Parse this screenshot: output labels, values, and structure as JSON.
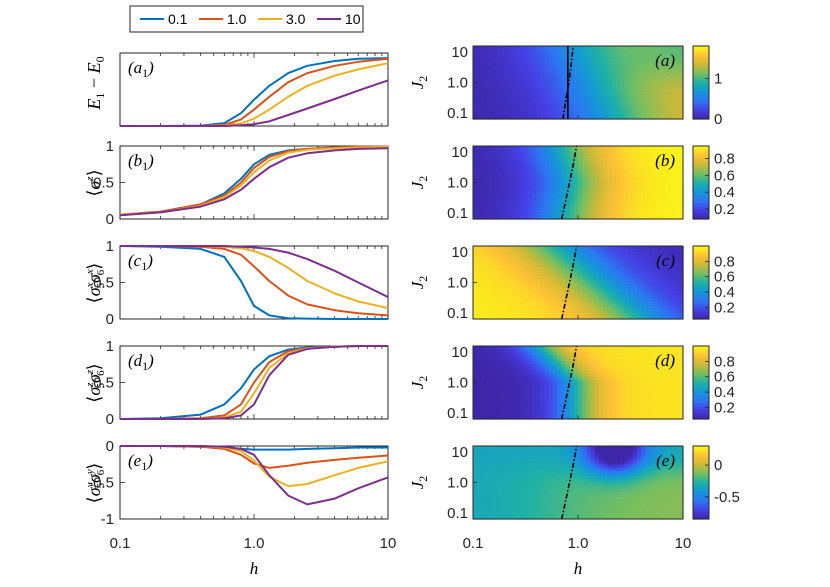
{
  "legend": {
    "entries": [
      {
        "label": "0.1",
        "color": "#0072BD"
      },
      {
        "label": "1.0",
        "color": "#D95319"
      },
      {
        "label": "3.0",
        "color": "#EDB120"
      },
      {
        "label": "10",
        "color": "#7E2F8E"
      }
    ]
  },
  "axes": {
    "xlabel": "h",
    "x_ticks": [
      "0.1",
      "1.0",
      "10"
    ],
    "heat_ylabel": "J",
    "heat_ylabel_sub": "2",
    "heat_y_ticks": [
      "10",
      "1.0",
      "0.1"
    ]
  },
  "chart_data": [
    {
      "type": "line",
      "panel": "(a1)",
      "panel_letter": "a",
      "ylabel": "E1 − E0",
      "xscale": "log",
      "xlim": [
        0.1,
        10
      ],
      "ylim": [
        0,
        2
      ],
      "y_ticks": [],
      "series": [
        {
          "name": "0.1",
          "x": [
            0.1,
            0.2,
            0.4,
            0.6,
            0.8,
            1.0,
            1.3,
            1.8,
            2.5,
            4,
            6,
            10
          ],
          "values": [
            0,
            0,
            0.01,
            0.08,
            0.35,
            0.72,
            1.1,
            1.45,
            1.65,
            1.78,
            1.84,
            1.86
          ]
        },
        {
          "name": "1.0",
          "x": [
            0.1,
            0.2,
            0.4,
            0.6,
            0.8,
            1.0,
            1.3,
            1.8,
            2.5,
            4,
            6,
            10
          ],
          "values": [
            0,
            0,
            0,
            0.03,
            0.18,
            0.45,
            0.8,
            1.2,
            1.45,
            1.65,
            1.76,
            1.84
          ]
        },
        {
          "name": "3.0",
          "x": [
            0.1,
            0.2,
            0.4,
            0.6,
            0.8,
            1.0,
            1.3,
            1.8,
            2.5,
            4,
            6,
            10
          ],
          "values": [
            0,
            0,
            0,
            0.01,
            0.07,
            0.2,
            0.45,
            0.8,
            1.1,
            1.38,
            1.55,
            1.72
          ]
        },
        {
          "name": "10",
          "x": [
            0.1,
            0.2,
            0.4,
            0.6,
            0.8,
            1.0,
            1.3,
            1.8,
            2.5,
            4,
            6,
            10
          ],
          "values": [
            0,
            0,
            0,
            0,
            0.02,
            0.05,
            0.13,
            0.3,
            0.48,
            0.74,
            0.97,
            1.25
          ]
        }
      ]
    },
    {
      "type": "line",
      "panel": "(b1)",
      "panel_letter": "b",
      "ylabel": "⟨σz⟩",
      "xscale": "log",
      "xlim": [
        0.1,
        10
      ],
      "ylim": [
        0,
        1
      ],
      "y_ticks": [
        "0",
        "0.5",
        "1"
      ],
      "series": [
        {
          "name": "0.1",
          "x": [
            0.1,
            0.2,
            0.4,
            0.6,
            0.8,
            1.0,
            1.3,
            1.8,
            2.5,
            4,
            6,
            10
          ],
          "values": [
            0.06,
            0.1,
            0.2,
            0.35,
            0.55,
            0.75,
            0.88,
            0.94,
            0.96,
            0.98,
            0.99,
            0.99
          ]
        },
        {
          "name": "1.0",
          "x": [
            0.1,
            0.2,
            0.4,
            0.6,
            0.8,
            1.0,
            1.3,
            1.8,
            2.5,
            4,
            6,
            10
          ],
          "values": [
            0.06,
            0.1,
            0.2,
            0.32,
            0.5,
            0.7,
            0.85,
            0.93,
            0.96,
            0.98,
            0.99,
            0.99
          ]
        },
        {
          "name": "3.0",
          "x": [
            0.1,
            0.2,
            0.4,
            0.6,
            0.8,
            1.0,
            1.3,
            1.8,
            2.5,
            4,
            6,
            10
          ],
          "values": [
            0.06,
            0.09,
            0.18,
            0.3,
            0.46,
            0.64,
            0.8,
            0.91,
            0.95,
            0.97,
            0.98,
            0.99
          ]
        },
        {
          "name": "10",
          "x": [
            0.1,
            0.2,
            0.4,
            0.6,
            0.8,
            1.0,
            1.3,
            1.8,
            2.5,
            4,
            6,
            10
          ],
          "values": [
            0.05,
            0.09,
            0.17,
            0.27,
            0.4,
            0.55,
            0.71,
            0.84,
            0.9,
            0.94,
            0.96,
            0.97
          ]
        }
      ]
    },
    {
      "type": "line",
      "panel": "(c1)",
      "panel_letter": "c",
      "ylabel": "⟨σ5x σ6x⟩",
      "xscale": "log",
      "xlim": [
        0.1,
        10
      ],
      "ylim": [
        0,
        1
      ],
      "y_ticks": [
        "0",
        "0.5",
        "1"
      ],
      "series": [
        {
          "name": "0.1",
          "x": [
            0.1,
            0.2,
            0.4,
            0.6,
            0.8,
            1.0,
            1.3,
            1.8,
            2.5,
            4,
            6,
            10
          ],
          "values": [
            1.0,
            0.99,
            0.96,
            0.85,
            0.52,
            0.18,
            0.05,
            0.01,
            0.005,
            0,
            0,
            0
          ]
        },
        {
          "name": "1.0",
          "x": [
            0.1,
            0.2,
            0.4,
            0.6,
            0.8,
            1.0,
            1.3,
            1.8,
            2.5,
            4,
            6,
            10
          ],
          "values": [
            1.0,
            1.0,
            0.99,
            0.96,
            0.88,
            0.72,
            0.52,
            0.32,
            0.2,
            0.12,
            0.08,
            0.05
          ]
        },
        {
          "name": "3.0",
          "x": [
            0.1,
            0.2,
            0.4,
            0.6,
            0.8,
            1.0,
            1.3,
            1.8,
            2.5,
            4,
            6,
            10
          ],
          "values": [
            1.0,
            1.0,
            1.0,
            0.99,
            0.97,
            0.93,
            0.85,
            0.7,
            0.52,
            0.35,
            0.24,
            0.15
          ]
        },
        {
          "name": "10",
          "x": [
            0.1,
            0.2,
            0.4,
            0.6,
            0.8,
            1.0,
            1.3,
            1.8,
            2.5,
            4,
            6,
            10
          ],
          "values": [
            1.0,
            1.0,
            1.0,
            1.0,
            0.99,
            0.98,
            0.96,
            0.91,
            0.82,
            0.66,
            0.5,
            0.3
          ]
        }
      ]
    },
    {
      "type": "line",
      "panel": "(d1)",
      "panel_letter": "d",
      "ylabel": "⟨σ5z σ6z⟩",
      "xscale": "log",
      "xlim": [
        0.1,
        10
      ],
      "ylim": [
        0,
        1
      ],
      "y_ticks": [
        "0",
        "0.5",
        "1"
      ],
      "series": [
        {
          "name": "0.1",
          "x": [
            0.1,
            0.2,
            0.4,
            0.6,
            0.8,
            1.0,
            1.3,
            1.8,
            2.5,
            4,
            6,
            10
          ],
          "values": [
            0,
            0.01,
            0.06,
            0.2,
            0.42,
            0.68,
            0.86,
            0.95,
            0.98,
            0.99,
            1,
            1
          ]
        },
        {
          "name": "1.0",
          "x": [
            0.1,
            0.2,
            0.4,
            0.6,
            0.8,
            1.0,
            1.3,
            1.8,
            2.5,
            4,
            6,
            10
          ],
          "values": [
            0,
            0,
            0.01,
            0.05,
            0.2,
            0.5,
            0.78,
            0.93,
            0.97,
            0.99,
            1,
            1
          ]
        },
        {
          "name": "3.0",
          "x": [
            0.1,
            0.2,
            0.4,
            0.6,
            0.8,
            1.0,
            1.3,
            1.8,
            2.5,
            4,
            6,
            10
          ],
          "values": [
            0,
            0,
            0,
            0.02,
            0.1,
            0.35,
            0.7,
            0.9,
            0.97,
            0.99,
            1,
            1
          ]
        },
        {
          "name": "10",
          "x": [
            0.1,
            0.2,
            0.4,
            0.6,
            0.8,
            1.0,
            1.3,
            1.8,
            2.5,
            4,
            6,
            10
          ],
          "values": [
            0,
            0,
            0,
            0.01,
            0.05,
            0.2,
            0.6,
            0.88,
            0.96,
            0.99,
            1,
            1
          ]
        }
      ]
    },
    {
      "type": "line",
      "panel": "(e1)",
      "panel_letter": "e",
      "ylabel": "⟨σ5y σ6y⟩",
      "xscale": "log",
      "xlim": [
        0.1,
        10
      ],
      "ylim": [
        -1,
        0
      ],
      "y_ticks": [
        "0",
        "-0.5",
        "-1"
      ],
      "series": [
        {
          "name": "0.1",
          "x": [
            0.1,
            0.2,
            0.4,
            0.6,
            0.8,
            1.0,
            1.3,
            1.8,
            2.5,
            4,
            6,
            10
          ],
          "values": [
            0,
            0,
            -0.01,
            -0.02,
            -0.04,
            -0.05,
            -0.05,
            -0.05,
            -0.04,
            -0.03,
            -0.02,
            -0.02
          ]
        },
        {
          "name": "1.0",
          "x": [
            0.1,
            0.2,
            0.4,
            0.6,
            0.8,
            1.0,
            1.3,
            1.8,
            2.5,
            4,
            6,
            10
          ],
          "values": [
            0,
            0,
            -0.01,
            -0.04,
            -0.12,
            -0.24,
            -0.3,
            -0.27,
            -0.23,
            -0.19,
            -0.16,
            -0.13
          ]
        },
        {
          "name": "3.0",
          "x": [
            0.1,
            0.2,
            0.4,
            0.6,
            0.8,
            1.0,
            1.3,
            1.8,
            2.5,
            4,
            6,
            10
          ],
          "values": [
            0,
            0,
            0,
            -0.02,
            -0.07,
            -0.2,
            -0.42,
            -0.55,
            -0.52,
            -0.4,
            -0.3,
            -0.21
          ]
        },
        {
          "name": "10",
          "x": [
            0.1,
            0.2,
            0.4,
            0.6,
            0.8,
            1.0,
            1.3,
            1.8,
            2.5,
            4,
            6,
            10
          ],
          "values": [
            0,
            0,
            0,
            -0.01,
            -0.04,
            -0.12,
            -0.4,
            -0.68,
            -0.8,
            -0.72,
            -0.58,
            -0.43
          ]
        }
      ]
    },
    {
      "type": "heatmap",
      "panel": "(a)",
      "panel_letter": "a",
      "xlabel": "h",
      "ylabel": "J2",
      "xscale": "log",
      "yscale": "log",
      "xlim": [
        0.1,
        10
      ],
      "ylim": [
        0.1,
        10
      ],
      "clim": [
        0,
        1.8
      ],
      "colorbar_ticks": [
        "0",
        "1"
      ],
      "colorbar_values": [
        0,
        1
      ],
      "transition_h_at_J2": [
        {
          "J2": 0.1,
          "h": 0.72
        },
        {
          "J2": 0.3,
          "h": 0.76
        },
        {
          "J2": 1.0,
          "h": 0.82
        },
        {
          "J2": 3.0,
          "h": 0.86
        },
        {
          "J2": 10,
          "h": 0.9
        }
      ],
      "solid_line_h": 0.8
    },
    {
      "type": "heatmap",
      "panel": "(b)",
      "panel_letter": "b",
      "xlabel": "h",
      "ylabel": "J2",
      "xscale": "log",
      "yscale": "log",
      "xlim": [
        0.1,
        10
      ],
      "ylim": [
        0.1,
        10
      ],
      "clim": [
        0.08,
        0.95
      ],
      "colorbar_ticks": [
        "0.8",
        "0.6",
        "0.4",
        "0.2"
      ],
      "colorbar_values": [
        0.8,
        0.6,
        0.4,
        0.2
      ],
      "transition_h_at_J2": [
        {
          "J2": 0.1,
          "h": 0.7
        },
        {
          "J2": 0.3,
          "h": 0.76
        },
        {
          "J2": 1.0,
          "h": 0.83
        },
        {
          "J2": 3.0,
          "h": 0.9
        },
        {
          "J2": 10,
          "h": 0.97
        }
      ]
    },
    {
      "type": "heatmap",
      "panel": "(c)",
      "panel_letter": "c",
      "xlabel": "h",
      "ylabel": "J2",
      "xscale": "log",
      "yscale": "log",
      "xlim": [
        0.1,
        10
      ],
      "ylim": [
        0.1,
        10
      ],
      "clim": [
        0.05,
        1.0
      ],
      "colorbar_ticks": [
        "0.8",
        "0.6",
        "0.4",
        "0.2"
      ],
      "colorbar_values": [
        0.8,
        0.6,
        0.4,
        0.2
      ],
      "transition_h_at_J2": [
        {
          "J2": 0.1,
          "h": 0.7
        },
        {
          "J2": 0.3,
          "h": 0.76
        },
        {
          "J2": 1.0,
          "h": 0.83
        },
        {
          "J2": 3.0,
          "h": 0.9
        },
        {
          "J2": 10,
          "h": 0.97
        }
      ]
    },
    {
      "type": "heatmap",
      "panel": "(d)",
      "panel_letter": "d",
      "xlabel": "h",
      "ylabel": "J2",
      "xscale": "log",
      "yscale": "log",
      "xlim": [
        0.1,
        10
      ],
      "ylim": [
        0.1,
        10
      ],
      "clim": [
        0.05,
        1.0
      ],
      "colorbar_ticks": [
        "0.8",
        "0.6",
        "0.4",
        "0.2"
      ],
      "colorbar_values": [
        0.8,
        0.6,
        0.4,
        0.2
      ],
      "transition_h_at_J2": [
        {
          "J2": 0.1,
          "h": 0.7
        },
        {
          "J2": 0.3,
          "h": 0.76
        },
        {
          "J2": 1.0,
          "h": 0.83
        },
        {
          "J2": 3.0,
          "h": 0.9
        },
        {
          "J2": 10,
          "h": 0.97
        }
      ]
    },
    {
      "type": "heatmap",
      "panel": "(e)",
      "panel_letter": "e",
      "xlabel": "h",
      "ylabel": "J2",
      "xscale": "log",
      "yscale": "log",
      "xlim": [
        0.1,
        10
      ],
      "ylim": [
        0.1,
        10
      ],
      "clim": [
        -0.85,
        0.3
      ],
      "colorbar_ticks": [
        "0",
        "-0.5"
      ],
      "colorbar_values": [
        0,
        -0.5
      ],
      "transition_h_at_J2": [
        {
          "J2": 0.1,
          "h": 0.7
        },
        {
          "J2": 0.3,
          "h": 0.76
        },
        {
          "J2": 1.0,
          "h": 0.83
        },
        {
          "J2": 3.0,
          "h": 0.9
        },
        {
          "J2": 10,
          "h": 0.97
        }
      ]
    }
  ]
}
